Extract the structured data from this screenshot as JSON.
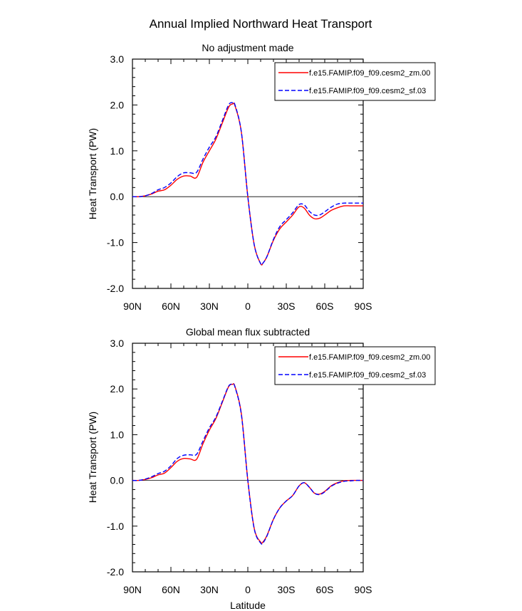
{
  "figure": {
    "title": "Annual Implied Northward Heat Transport",
    "xlabel": "Latitude"
  },
  "chart_data": [
    {
      "type": "line",
      "title": "No adjustment made",
      "xlabel": "Latitude",
      "ylabel": "Heat Transport (PW)",
      "xlim": [
        90,
        -90
      ],
      "ylim": [
        -2.0,
        3.0
      ],
      "x_ticks": [
        90,
        60,
        30,
        0,
        -30,
        -60,
        -90
      ],
      "x_tick_labels": [
        "90N",
        "60N",
        "30N",
        "0",
        "30S",
        "60S",
        "90S"
      ],
      "y_ticks": [
        -2.0,
        -1.0,
        0.0,
        1.0,
        2.0,
        3.0
      ],
      "y_tick_labels": [
        "-2.0",
        "-1.0",
        "0.0",
        "1.0",
        "2.0",
        "3.0"
      ],
      "reference_line": 0.0,
      "legend": "top-right",
      "x": [
        90,
        85,
        80,
        75,
        70,
        65,
        60,
        55,
        50,
        45,
        40,
        35,
        30,
        25,
        20,
        15,
        12,
        10,
        5,
        0,
        -5,
        -10,
        -12,
        -15,
        -20,
        -25,
        -30,
        -35,
        -40,
        -44,
        -48,
        -52,
        -56,
        -60,
        -65,
        -70,
        -75,
        -80,
        -85,
        -90
      ],
      "series": [
        {
          "name": "f.e15.FAMIP.f09_f09.cesm2_zm.00",
          "color": "#ff0000",
          "dash": "solid",
          "values": [
            0.0,
            0.0,
            0.02,
            0.06,
            0.12,
            0.15,
            0.25,
            0.38,
            0.45,
            0.45,
            0.42,
            0.75,
            1.0,
            1.25,
            1.6,
            1.95,
            2.02,
            1.98,
            1.4,
            0.0,
            -1.05,
            -1.46,
            -1.44,
            -1.3,
            -0.95,
            -0.7,
            -0.55,
            -0.4,
            -0.22,
            -0.25,
            -0.4,
            -0.48,
            -0.47,
            -0.4,
            -0.3,
            -0.24,
            -0.2,
            -0.2,
            -0.2,
            -0.2
          ]
        },
        {
          "name": "f.e15.FAMIP.f09_f09.cesm2_sf.03",
          "color": "#0000ff",
          "dash": "dashed",
          "values": [
            0.0,
            0.0,
            0.02,
            0.07,
            0.15,
            0.2,
            0.3,
            0.44,
            0.52,
            0.52,
            0.53,
            0.82,
            1.08,
            1.3,
            1.65,
            2.0,
            2.05,
            2.0,
            1.4,
            0.0,
            -1.05,
            -1.46,
            -1.44,
            -1.3,
            -0.93,
            -0.65,
            -0.5,
            -0.35,
            -0.17,
            -0.18,
            -0.32,
            -0.4,
            -0.4,
            -0.33,
            -0.23,
            -0.16,
            -0.14,
            -0.14,
            -0.14,
            -0.14
          ]
        }
      ]
    },
    {
      "type": "line",
      "title": "Global mean flux subtracted",
      "xlabel": "Latitude",
      "ylabel": "Heat Transport (PW)",
      "xlim": [
        90,
        -90
      ],
      "ylim": [
        -2.0,
        3.0
      ],
      "x_ticks": [
        90,
        60,
        30,
        0,
        -30,
        -60,
        -90
      ],
      "x_tick_labels": [
        "90N",
        "60N",
        "30N",
        "0",
        "30S",
        "60S",
        "90S"
      ],
      "y_ticks": [
        -2.0,
        -1.0,
        0.0,
        1.0,
        2.0,
        3.0
      ],
      "y_tick_labels": [
        "-2.0",
        "-1.0",
        "0.0",
        "1.0",
        "2.0",
        "3.0"
      ],
      "reference_line": 0.0,
      "legend": "top-right",
      "x": [
        90,
        85,
        80,
        75,
        70,
        65,
        60,
        55,
        50,
        45,
        40,
        35,
        30,
        25,
        20,
        15,
        12,
        10,
        5,
        0,
        -5,
        -10,
        -12,
        -15,
        -20,
        -25,
        -30,
        -35,
        -40,
        -44,
        -48,
        -52,
        -56,
        -60,
        -65,
        -70,
        -75,
        -80,
        -85,
        -90
      ],
      "series": [
        {
          "name": "f.e15.FAMIP.f09_f09.cesm2_zm.00",
          "color": "#ff0000",
          "dash": "solid",
          "values": [
            0.0,
            0.0,
            0.02,
            0.06,
            0.12,
            0.16,
            0.28,
            0.42,
            0.48,
            0.47,
            0.46,
            0.8,
            1.1,
            1.35,
            1.7,
            2.05,
            2.1,
            2.05,
            1.45,
            0.0,
            -1.05,
            -1.35,
            -1.34,
            -1.2,
            -0.85,
            -0.6,
            -0.45,
            -0.33,
            -0.12,
            -0.05,
            -0.15,
            -0.28,
            -0.3,
            -0.24,
            -0.12,
            -0.05,
            -0.01,
            0.0,
            0.0,
            0.0
          ]
        },
        {
          "name": "f.e15.FAMIP.f09_f09.cesm2_sf.03",
          "color": "#0000ff",
          "dash": "dashed",
          "values": [
            0.0,
            0.0,
            0.03,
            0.08,
            0.15,
            0.2,
            0.32,
            0.48,
            0.55,
            0.56,
            0.57,
            0.86,
            1.15,
            1.38,
            1.72,
            2.06,
            2.1,
            2.04,
            1.43,
            0.0,
            -1.06,
            -1.37,
            -1.36,
            -1.21,
            -0.85,
            -0.6,
            -0.45,
            -0.33,
            -0.12,
            -0.05,
            -0.15,
            -0.28,
            -0.31,
            -0.25,
            -0.13,
            -0.06,
            -0.02,
            -0.01,
            0.0,
            0.0
          ]
        }
      ]
    }
  ]
}
